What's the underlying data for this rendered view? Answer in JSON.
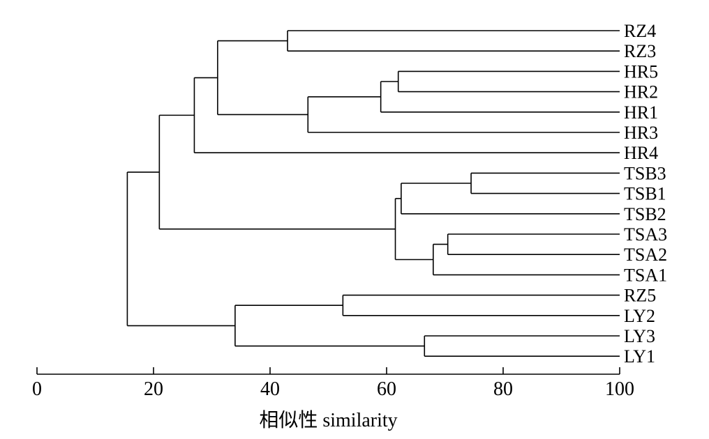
{
  "chart_data": {
    "type": "dendrogram",
    "xlabel": "相似性 similarity",
    "xlim": [
      0,
      100
    ],
    "xticks": [
      "0",
      "20",
      "40",
      "60",
      "80",
      "100"
    ],
    "leaves": [
      "RZ4",
      "RZ3",
      "HR5",
      "HR2",
      "HR1",
      "HR3",
      "HR4",
      "TSB3",
      "TSB1",
      "TSB2",
      "TSA3",
      "TSA2",
      "TSA1",
      "RZ5",
      "LY2",
      "LY3",
      "LY1"
    ],
    "merges": [
      {
        "a": "RZ4",
        "b": "RZ3",
        "similarity": 43
      },
      {
        "a": "HR5",
        "b": "HR2",
        "similarity": 62
      },
      {
        "a": "HR5+HR2",
        "b": "HR1",
        "similarity": 59
      },
      {
        "a": "HR5+HR2+HR1",
        "b": "HR3",
        "similarity": 46.5
      },
      {
        "a": "RZ4+RZ3",
        "b": "HR5+HR2+HR1+HR3",
        "similarity": 31
      },
      {
        "a": "RZ-HR cluster",
        "b": "HR4",
        "similarity": 27
      },
      {
        "a": "TSB3",
        "b": "TSB1",
        "similarity": 74.5
      },
      {
        "a": "TSB3+TSB1",
        "b": "TSB2",
        "similarity": 62.5
      },
      {
        "a": "TSA3",
        "b": "TSA2",
        "similarity": 70.5
      },
      {
        "a": "TSA3+TSA2",
        "b": "TSA1",
        "similarity": 68
      },
      {
        "a": "TSB cluster",
        "b": "TSA cluster",
        "similarity": 61.5
      },
      {
        "a": "RZ-HR cluster",
        "b": "TS cluster",
        "similarity": 21
      },
      {
        "a": "RZ5",
        "b": "LY2",
        "similarity": 52.5
      },
      {
        "a": "LY3",
        "b": "LY1",
        "similarity": 66.5
      },
      {
        "a": "RZ5+LY2",
        "b": "LY3+LY1",
        "similarity": 34
      },
      {
        "a": "upper cluster",
        "b": "lower cluster",
        "similarity": 15.5
      }
    ]
  }
}
